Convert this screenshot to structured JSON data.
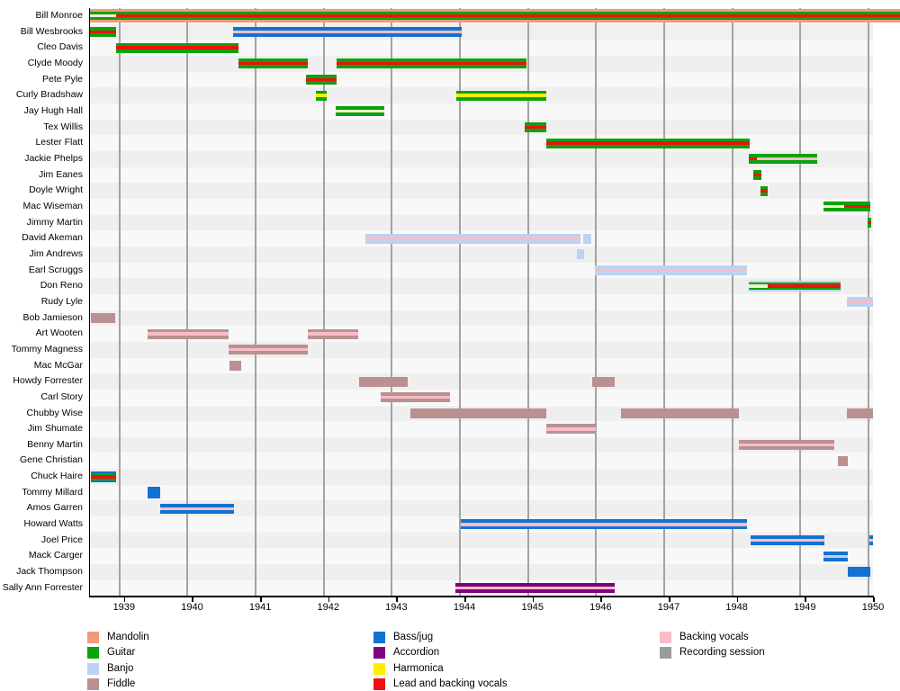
{
  "chart_data": {
    "type": "timeline",
    "title": "",
    "xlabel": "",
    "ylabel": "",
    "axis": {
      "x_start": 1938.5,
      "x_end": 1950.0,
      "tick_years": [
        1939,
        1940,
        1941,
        1942,
        1943,
        1944,
        1945,
        1946,
        1947,
        1948,
        1949,
        1950
      ],
      "grid": "vertical-yearly"
    },
    "colors": {
      "mandolin": "#F4997B",
      "guitar": "#0BA30B",
      "banjo": "#BDD2F2",
      "fiddle": "#BA9090",
      "bass": "#1272D2",
      "accordion": "#800080",
      "harmonica": "#FFEE00",
      "vocals": "#EE1111",
      "backing": "#F8BDC8",
      "session": "#9B9B9B",
      "pale": "#EFEFD0",
      "pale_salmon": "#F8E7DF",
      "palelav": "#C8CAEC"
    },
    "patterns": {
      "mandolin_bg": [
        [
          "mandolin",
          1
        ]
      ],
      "guitar_vocals": [
        [
          "guitar",
          4
        ],
        [
          "vocals",
          3.5
        ],
        [
          "guitar",
          4
        ]
      ],
      "guitar_pale": [
        [
          "guitar",
          4
        ],
        [
          "pale",
          3.5
        ],
        [
          "guitar",
          4
        ]
      ],
      "guitar_pale_salmon": [
        [
          "guitar",
          4
        ],
        [
          "pale_salmon",
          3.5
        ],
        [
          "guitar",
          4
        ]
      ],
      "guitar_backing": [
        [
          "guitar",
          4
        ],
        [
          "backing",
          3.5
        ],
        [
          "guitar",
          4
        ]
      ],
      "guitar_harmonica": [
        [
          "guitar",
          4
        ],
        [
          "harmonica",
          3.5
        ],
        [
          "guitar",
          4
        ]
      ],
      "banjo_solid": [
        [
          "banjo",
          1
        ]
      ],
      "banjo_backing": [
        [
          "banjo",
          4
        ],
        [
          "backing",
          3.5
        ],
        [
          "banjo",
          4
        ]
      ],
      "fiddle_solid": [
        [
          "fiddle",
          1
        ]
      ],
      "fiddle_backing": [
        [
          "fiddle",
          4
        ],
        [
          "backing",
          3.5
        ],
        [
          "fiddle",
          4
        ]
      ],
      "bass_solid": [
        [
          "bass",
          1
        ]
      ],
      "bass_backing": [
        [
          "bass",
          4
        ],
        [
          "backing",
          3.5
        ],
        [
          "bass",
          4
        ]
      ],
      "bass_palelav": [
        [
          "bass",
          4
        ],
        [
          "palelav",
          3.5
        ],
        [
          "bass",
          4
        ]
      ],
      "accordion_backing": [
        [
          "accordion",
          4
        ],
        [
          "backing",
          3.5
        ],
        [
          "accordion",
          4
        ]
      ],
      "banjo_guitar_vocals": [
        [
          "banjo",
          1.5
        ],
        [
          "guitar",
          2.5
        ],
        [
          "vocals",
          3.5
        ],
        [
          "guitar",
          2.5
        ],
        [
          "banjo",
          1.5
        ]
      ],
      "banjo_guitar_pale": [
        [
          "banjo",
          1.5
        ],
        [
          "guitar",
          2.5
        ],
        [
          "pale",
          3.5
        ],
        [
          "guitar",
          2.5
        ],
        [
          "banjo",
          1.5
        ]
      ],
      "bass_guitar_vocals": [
        [
          "bass",
          1.5
        ],
        [
          "guitar",
          2.5
        ],
        [
          "vocals",
          3.5
        ],
        [
          "guitar",
          2.5
        ],
        [
          "bass",
          1.5
        ]
      ]
    },
    "rows": [
      {
        "label": "Bill Monroe",
        "bars": [
          [
            1938.5,
            1950.4,
            "mandolin_bg",
            15
          ],
          [
            1938.5,
            1938.88,
            "guitar_pale_salmon",
            9
          ],
          [
            1938.88,
            1950.4,
            "guitar_vocals",
            9
          ]
        ]
      },
      {
        "label": "Bill Wesbrooks",
        "bars": [
          [
            1938.5,
            1938.88,
            "guitar_vocals"
          ],
          [
            1940.6,
            1943.96,
            "bass_backing"
          ]
        ]
      },
      {
        "label": "Cleo Davis",
        "bars": [
          [
            1938.88,
            1940.68,
            "guitar_vocals"
          ]
        ]
      },
      {
        "label": "Clyde Moody",
        "bars": [
          [
            1940.68,
            1941.7,
            "guitar_vocals"
          ],
          [
            1942.12,
            1944.91,
            "guitar_vocals"
          ]
        ]
      },
      {
        "label": "Pete Pyle",
        "bars": [
          [
            1941.67,
            1942.12,
            "guitar_vocals"
          ]
        ]
      },
      {
        "label": "Curly Bradshaw",
        "bars": [
          [
            1941.82,
            1941.98,
            "guitar_harmonica"
          ],
          [
            1943.88,
            1945.2,
            "guitar_harmonica"
          ]
        ]
      },
      {
        "label": "Jay Hugh Hall",
        "bars": [
          [
            1942.11,
            1942.82,
            "guitar_pale"
          ]
        ]
      },
      {
        "label": "Tex Willis",
        "bars": [
          [
            1944.88,
            1945.2,
            "guitar_vocals"
          ]
        ]
      },
      {
        "label": "Lester Flatt",
        "bars": [
          [
            1945.2,
            1948.19,
            "guitar_vocals"
          ]
        ]
      },
      {
        "label": "Jackie Phelps",
        "bars": [
          [
            1948.18,
            1948.3,
            "guitar_vocals"
          ],
          [
            1948.3,
            1949.18,
            "guitar_backing"
          ]
        ]
      },
      {
        "label": "Jim Eanes",
        "bars": [
          [
            1948.24,
            1948.36,
            "guitar_vocals"
          ]
        ]
      },
      {
        "label": "Doyle Wright",
        "bars": [
          [
            1948.35,
            1948.45,
            "guitar_vocals"
          ]
        ]
      },
      {
        "label": "Mac Wiseman",
        "bars": [
          [
            1949.27,
            1949.58,
            "guitar_pale"
          ],
          [
            1949.58,
            1949.96,
            "guitar_vocals"
          ]
        ]
      },
      {
        "label": "Jimmy Martin",
        "bars": [
          [
            1949.92,
            1949.97,
            "guitar_vocals"
          ]
        ]
      },
      {
        "label": "David Akeman",
        "bars": [
          [
            1942.54,
            1945.7,
            "banjo_backing"
          ],
          [
            1945.74,
            1945.86,
            "banjo_solid"
          ]
        ]
      },
      {
        "label": "Jim Andrews",
        "bars": [
          [
            1945.65,
            1945.76,
            "banjo_solid"
          ]
        ]
      },
      {
        "label": "Earl Scruggs",
        "bars": [
          [
            1945.92,
            1948.15,
            "banjo_backing"
          ]
        ]
      },
      {
        "label": "Don Reno",
        "bars": [
          [
            1948.18,
            1948.45,
            "banjo_guitar_pale",
            12
          ],
          [
            1948.45,
            1949.53,
            "banjo_guitar_vocals",
            12
          ]
        ]
      },
      {
        "label": "Rudy Lyle",
        "bars": [
          [
            1949.62,
            1950.0,
            "banjo_backing"
          ]
        ]
      },
      {
        "label": "Bob Jamieson",
        "bars": [
          [
            1938.51,
            1938.87,
            "fiddle_solid"
          ]
        ]
      },
      {
        "label": "Art Wooten",
        "bars": [
          [
            1939.35,
            1940.54,
            "fiddle_backing"
          ],
          [
            1941.7,
            1942.44,
            "fiddle_backing"
          ]
        ]
      },
      {
        "label": "Tommy Magness",
        "bars": [
          [
            1940.54,
            1941.7,
            "fiddle_backing"
          ]
        ]
      },
      {
        "label": "Mac McGar",
        "bars": [
          [
            1940.55,
            1940.72,
            "fiddle_solid"
          ]
        ]
      },
      {
        "label": "Howdy Forrester",
        "bars": [
          [
            1942.45,
            1943.17,
            "fiddle_solid"
          ],
          [
            1945.88,
            1946.21,
            "fiddle_solid"
          ]
        ]
      },
      {
        "label": "Carl Story",
        "bars": [
          [
            1942.77,
            1943.79,
            "fiddle_backing"
          ]
        ]
      },
      {
        "label": "Chubby Wise",
        "bars": [
          [
            1943.21,
            1945.2,
            "fiddle_solid"
          ],
          [
            1946.3,
            1948.03,
            "fiddle_solid"
          ],
          [
            1949.62,
            1950.0,
            "fiddle_solid"
          ]
        ]
      },
      {
        "label": "Jim Shumate",
        "bars": [
          [
            1945.2,
            1945.93,
            "fiddle_backing"
          ]
        ]
      },
      {
        "label": "Benny Martin",
        "bars": [
          [
            1948.03,
            1949.43,
            "fiddle_backing"
          ]
        ]
      },
      {
        "label": "Gene Christian",
        "bars": [
          [
            1949.49,
            1949.63,
            "fiddle_solid"
          ]
        ]
      },
      {
        "label": "Chuck Haire",
        "bars": [
          [
            1938.51,
            1938.88,
            "bass_guitar_vocals",
            12
          ]
        ]
      },
      {
        "label": "Tommy Millard",
        "bars": [
          [
            1939.35,
            1939.53,
            "bass_solid",
            13
          ]
        ]
      },
      {
        "label": "Amos Garren",
        "bars": [
          [
            1939.53,
            1940.62,
            "bass_backing"
          ]
        ]
      },
      {
        "label": "Howard Watts",
        "bars": [
          [
            1943.95,
            1948.15,
            "bass_backing"
          ]
        ]
      },
      {
        "label": "Joel Price",
        "bars": [
          [
            1948.2,
            1949.29,
            "bass_backing"
          ],
          [
            1949.95,
            1950.0,
            "bass_backing"
          ]
        ]
      },
      {
        "label": "Mack Carger",
        "bars": [
          [
            1949.27,
            1949.63,
            "bass_palelav"
          ]
        ]
      },
      {
        "label": "Jack Thompson",
        "bars": [
          [
            1949.63,
            1949.96,
            "bass_solid"
          ]
        ]
      },
      {
        "label": "Sally Ann Forrester",
        "bars": [
          [
            1943.87,
            1946.21,
            "accordion_backing"
          ]
        ]
      }
    ],
    "legend": {
      "position": "bottom",
      "columns": [
        [
          {
            "label": "Mandolin",
            "color": "mandolin"
          },
          {
            "label": "Guitar",
            "color": "guitar"
          },
          {
            "label": "Banjo",
            "color": "banjo"
          },
          {
            "label": "Fiddle",
            "color": "fiddle"
          }
        ],
        [
          {
            "label": "Bass/jug",
            "color": "bass"
          },
          {
            "label": "Accordion",
            "color": "accordion"
          },
          {
            "label": "Harmonica",
            "color": "harmonica"
          },
          {
            "label": "Lead and backing vocals",
            "color": "vocals"
          }
        ],
        [
          {
            "label": "Backing vocals",
            "color": "backing"
          },
          {
            "label": "Recording session",
            "color": "session"
          }
        ]
      ]
    }
  }
}
